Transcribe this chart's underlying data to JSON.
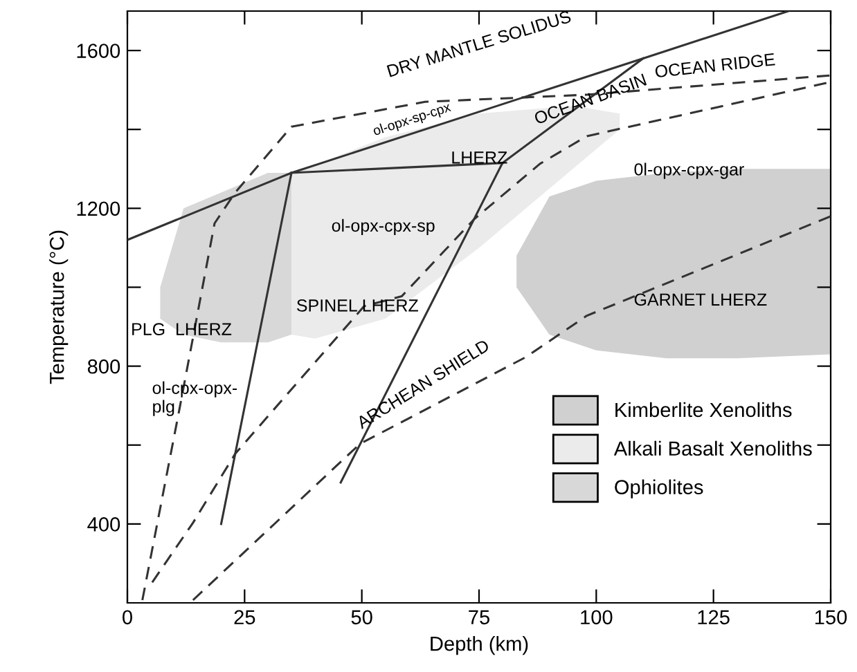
{
  "chart_data": {
    "type": "line",
    "xlabel": "Depth (km)",
    "ylabel": "Temperature (°C)",
    "xlim": [
      0,
      150
    ],
    "ylim": [
      200,
      1700
    ],
    "xticks": [
      0,
      25,
      50,
      75,
      100,
      125,
      150
    ],
    "yticks": [
      {
        "value": 400,
        "label": "400"
      },
      {
        "value": 600,
        "label": null
      },
      {
        "value": 800,
        "label": "800"
      },
      {
        "value": 1000,
        "label": null
      },
      {
        "value": 1200,
        "label": "1200"
      },
      {
        "value": 1400,
        "label": null
      },
      {
        "value": 1600,
        "label": "1600"
      }
    ],
    "grid": false,
    "legend": "bottom right",
    "series": [
      {
        "name": "Kimberlite Xenoliths",
        "type": "area",
        "color": "#d0d0d0",
        "x": [
          83,
          90,
          100,
          115,
          130,
          150,
          150,
          130,
          115,
          100,
          90,
          83
        ],
        "values": [
          1080,
          1230,
          1270,
          1290,
          1300,
          1300,
          830,
          820,
          820,
          840,
          880,
          1000
        ]
      },
      {
        "name": "Alkali Basalt Xenoliths",
        "type": "area",
        "color": "#ebebeb",
        "x": [
          35,
          40,
          55,
          75,
          95,
          105,
          105,
          95,
          75,
          55,
          40,
          35
        ],
        "values": [
          1285,
          1310,
          1380,
          1440,
          1460,
          1440,
          1400,
          1300,
          1100,
          920,
          870,
          880
        ]
      },
      {
        "name": "Ophiolites",
        "type": "area",
        "color": "#d8d8d8",
        "x": [
          7,
          12,
          20,
          30,
          35,
          35,
          30,
          20,
          12,
          7
        ],
        "values": [
          1000,
          1200,
          1240,
          1290,
          1290,
          880,
          860,
          860,
          880,
          920
        ]
      },
      {
        "color": "#333333",
        "line_style": "solid",
        "x": [
          0,
          35,
          110,
          141
        ],
        "values": [
          1120,
          1290,
          1580,
          1700
        ]
      },
      {
        "color": "#333333",
        "line_style": "solid",
        "x": [
          35,
          20
        ],
        "values": [
          1290,
          400
        ]
      },
      {
        "color": "#333333",
        "line_style": "solid",
        "x": [
          35,
          80
        ],
        "values": [
          1290,
          1315
        ]
      },
      {
        "color": "#333333",
        "line_style": "solid",
        "x": [
          110,
          80,
          45.5
        ],
        "values": [
          1580,
          1315,
          505
        ]
      },
      {
        "color": "#333333",
        "line_style": "dashed",
        "x": [
          3.2,
          11.2,
          18.6,
          23,
          35,
          63.5,
          98,
          150
        ],
        "values": [
          207,
          697,
          1162,
          1240,
          1407,
          1470,
          1488,
          1537
        ]
      },
      {
        "color": "#333333",
        "line_style": "dashed",
        "x": [
          5.3,
          14,
          23,
          50.5,
          58.5,
          74,
          88,
          98,
          150
        ],
        "values": [
          252,
          403,
          578,
          952,
          977,
          1173,
          1313,
          1383,
          1520
        ]
      },
      {
        "color": "#333333",
        "line_style": "dashed",
        "x": [
          14,
          49.6,
          85,
          98,
          127,
          150
        ],
        "values": [
          207,
          603,
          823,
          928,
          1068,
          1180
        ]
      }
    ],
    "annotations": [
      "DRY MANTLE SOLIDUS",
      "ol-opx-sp-cpx",
      "LHERZ",
      "OCEAN RIDGE",
      "OCEAN BASIN",
      "0l-opx-cpx-gar",
      "ol-opx-cpx-sp",
      "GARNET LHERZ",
      "SPINEL LHERZ",
      "PLG  LHERZ",
      "ol-cpx-opx-\nplg",
      "ARCHEAN SHIELD"
    ]
  }
}
